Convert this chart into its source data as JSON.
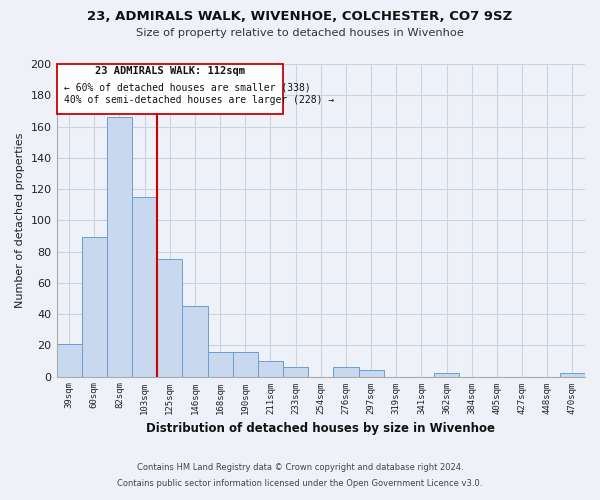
{
  "title": "23, ADMIRALS WALK, WIVENHOE, COLCHESTER, CO7 9SZ",
  "subtitle": "Size of property relative to detached houses in Wivenhoe",
  "xlabel": "Distribution of detached houses by size in Wivenhoe",
  "ylabel": "Number of detached properties",
  "bar_labels": [
    "39sqm",
    "60sqm",
    "82sqm",
    "103sqm",
    "125sqm",
    "146sqm",
    "168sqm",
    "190sqm",
    "211sqm",
    "233sqm",
    "254sqm",
    "276sqm",
    "297sqm",
    "319sqm",
    "341sqm",
    "362sqm",
    "384sqm",
    "405sqm",
    "427sqm",
    "448sqm",
    "470sqm"
  ],
  "bar_values": [
    21,
    89,
    166,
    115,
    75,
    45,
    16,
    16,
    10,
    6,
    0,
    6,
    4,
    0,
    0,
    2,
    0,
    0,
    0,
    0,
    2
  ],
  "bar_color": "#c8d8ee",
  "bar_edge_color": "#6a9ecf",
  "vline_color": "#cc0000",
  "ylim": [
    0,
    200
  ],
  "yticks": [
    0,
    20,
    40,
    60,
    80,
    100,
    120,
    140,
    160,
    180,
    200
  ],
  "annotation_title": "23 ADMIRALS WALK: 112sqm",
  "annotation_line1": "← 60% of detached houses are smaller (338)",
  "annotation_line2": "40% of semi-detached houses are larger (228) →",
  "footer1": "Contains HM Land Registry data © Crown copyright and database right 2024.",
  "footer2": "Contains public sector information licensed under the Open Government Licence v3.0.",
  "grid_color": "#c8d4e0",
  "background_color": "#eef2f8"
}
